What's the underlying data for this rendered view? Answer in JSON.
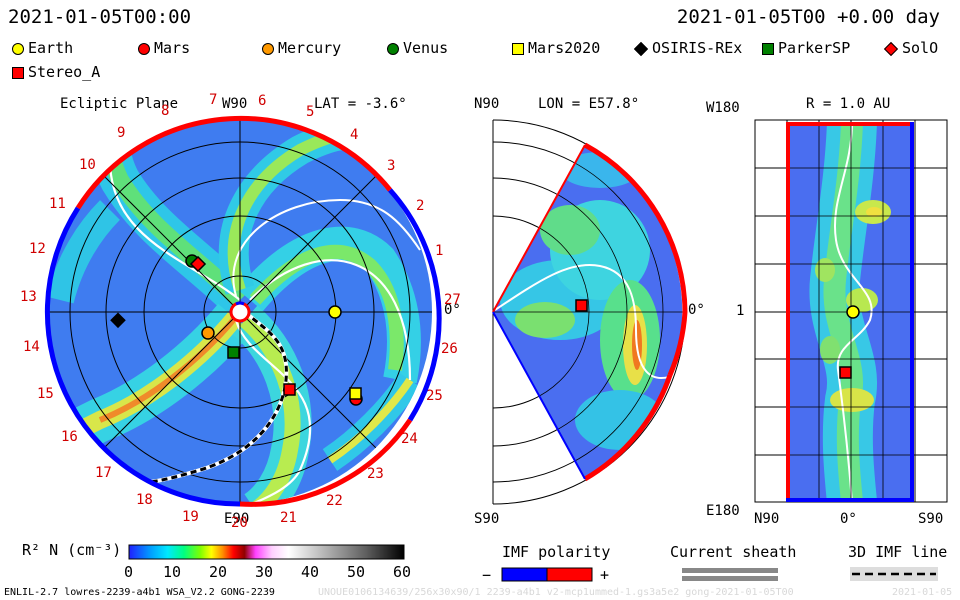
{
  "header": {
    "datetime_left": "2021-01-05T00:00",
    "datetime_right": "2021-01-05T00 +0.00 day"
  },
  "legend": [
    {
      "name": "Earth",
      "marker": "circle",
      "color": "#ffff00"
    },
    {
      "name": "Mars",
      "marker": "circle",
      "color": "#ff0000"
    },
    {
      "name": "Mercury",
      "marker": "circle",
      "color": "#ff9900"
    },
    {
      "name": "Venus",
      "marker": "circle",
      "color": "#008000"
    },
    {
      "name": "Mars2020",
      "marker": "square",
      "color": "#ffff00"
    },
    {
      "name": "OSIRIS-REx",
      "marker": "diamond",
      "color": "#000000"
    },
    {
      "name": "ParkerSP",
      "marker": "square",
      "color": "#008000"
    },
    {
      "name": "SolO",
      "marker": "diamond",
      "color": "#ff0000"
    },
    {
      "name": "Stereo_A",
      "marker": "square",
      "color": "#ff0000"
    }
  ],
  "panel1": {
    "title": "Ecliptic Plane",
    "top_label": "W90",
    "lat": "LAT = -3.6°",
    "bottom_label": "E90",
    "right_label": "0°",
    "carrington_ticks": [
      "1",
      "2",
      "3",
      "4",
      "5",
      "6",
      "7",
      "8",
      "9",
      "10",
      "11",
      "12",
      "13",
      "14",
      "15",
      "16",
      "17",
      "18",
      "19",
      "20",
      "21",
      "22",
      "23",
      "24",
      "25",
      "26",
      "27"
    ]
  },
  "panel2": {
    "top_left": "N90",
    "lon": "LON = E57.8°",
    "bottom_left": "S90",
    "right_label": "0°"
  },
  "panel3": {
    "top_left": "W180",
    "radius": "R = 1.0 AU",
    "mid_left": "1",
    "bottom_left": "E180",
    "x_labels": [
      "N90",
      "0°",
      "S90"
    ]
  },
  "colorbar": {
    "label": "R² N (cm⁻³)",
    "ticks": [
      "0",
      "10",
      "20",
      "30",
      "40",
      "50",
      "60"
    ],
    "colors": [
      "#2020ff",
      "#00a0ff",
      "#00e0ff",
      "#00ff80",
      "#60ff00",
      "#e0ff00",
      "#ff9000",
      "#ff0000",
      "#a00000",
      "#ff60ff",
      "#ffe0ff",
      "#ffffff",
      "#c0c0c0",
      "#808080",
      "#404040",
      "#000000"
    ]
  },
  "imf_polarity": {
    "label": "IMF polarity",
    "minus": "−",
    "plus": "+",
    "neg_color": "#0000ff",
    "pos_color": "#ff0000"
  },
  "current_sheath": {
    "label": "Current sheath"
  },
  "imf_3d": {
    "label": "3D IMF line"
  },
  "footer": {
    "model": "ENLIL-2.7 lowres-2239-a4b1 WSA_V2.2 GONG-2239",
    "run_id": "UNOUE0106134639/256x30x90/1 2239-a4b1 v2-mcp1ummed-1.gs3a5e2 gong-2021-01-05T00",
    "date": "2021-01-05"
  }
}
